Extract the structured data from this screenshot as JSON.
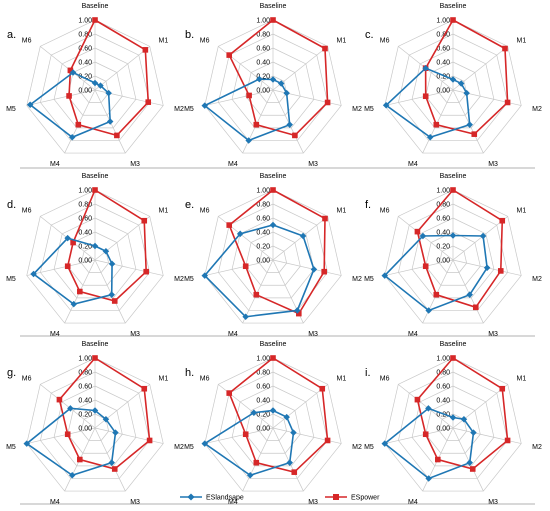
{
  "chart_data": {
    "type": "radar",
    "axes": [
      "Baseline",
      "M1",
      "M2",
      "M3",
      "M4",
      "M5",
      "M6"
    ],
    "ticks": [
      "0.00",
      "0.20",
      "0.40",
      "0.60",
      "0.80",
      "1.00"
    ],
    "rlim": [
      0,
      1
    ],
    "legend": {
      "placement": "bottom",
      "entries": [
        {
          "name": "ESlandsape",
          "color": "#1f77b4",
          "marker": "diamond"
        },
        {
          "name": "ESpower",
          "color": "#d62728",
          "marker": "square"
        }
      ]
    },
    "panels": [
      {
        "label": "a.",
        "series": [
          {
            "name": "ESlandsape",
            "values": [
              0.1,
              0.1,
              0.2,
              0.5,
              0.75,
              0.95,
              0.4
            ]
          },
          {
            "name": "ESpower",
            "values": [
              1.0,
              0.92,
              0.78,
              0.72,
              0.55,
              0.38,
              0.45
            ]
          }
        ]
      },
      {
        "label": "b.",
        "series": [
          {
            "name": "ESlandsape",
            "values": [
              0.15,
              0.15,
              0.2,
              0.55,
              0.8,
              1.0,
              0.25
            ]
          },
          {
            "name": "ESpower",
            "values": [
              1.0,
              0.95,
              0.8,
              0.72,
              0.55,
              0.35,
              0.8
            ]
          }
        ]
      },
      {
        "label": "c.",
        "series": [
          {
            "name": "ESlandsape",
            "values": [
              0.15,
              0.15,
              0.2,
              0.55,
              0.75,
              0.98,
              0.5
            ]
          },
          {
            "name": "ESpower",
            "values": [
              1.0,
              0.95,
              0.8,
              0.7,
              0.55,
              0.4,
              0.5
            ]
          }
        ]
      },
      {
        "label": "d.",
        "series": [
          {
            "name": "ESlandsape",
            "values": [
              0.2,
              0.2,
              0.25,
              0.55,
              0.7,
              0.9,
              0.5
            ]
          },
          {
            "name": "ESpower",
            "values": [
              1.0,
              0.9,
              0.75,
              0.65,
              0.5,
              0.4,
              0.4
            ]
          }
        ]
      },
      {
        "label": "e.",
        "series": [
          {
            "name": "ESlandsape",
            "values": [
              0.5,
              0.55,
              0.6,
              0.8,
              0.9,
              1.0,
              0.6
            ]
          },
          {
            "name": "ESpower",
            "values": [
              1.0,
              0.95,
              0.75,
              0.85,
              0.55,
              0.4,
              0.8
            ]
          }
        ]
      },
      {
        "label": "f.",
        "series": [
          {
            "name": "ESlandsape",
            "values": [
              0.35,
              0.55,
              0.5,
              0.55,
              0.8,
              1.0,
              0.55
            ]
          },
          {
            "name": "ESpower",
            "values": [
              1.0,
              0.9,
              0.7,
              0.75,
              0.55,
              0.4,
              0.65
            ]
          }
        ]
      },
      {
        "label": "g.",
        "series": [
          {
            "name": "ESlandsape",
            "values": [
              0.25,
              0.2,
              0.3,
              0.55,
              0.75,
              1.0,
              0.45
            ]
          },
          {
            "name": "ESpower",
            "values": [
              1.0,
              0.9,
              0.8,
              0.65,
              0.5,
              0.4,
              0.65
            ]
          }
        ]
      },
      {
        "label": "h.",
        "series": [
          {
            "name": "ESlandsape",
            "values": [
              0.25,
              0.25,
              0.3,
              0.55,
              0.75,
              1.0,
              0.35
            ]
          },
          {
            "name": "ESpower",
            "values": [
              1.0,
              0.9,
              0.8,
              0.7,
              0.55,
              0.4,
              0.8
            ]
          }
        ]
      },
      {
        "label": "i.",
        "series": [
          {
            "name": "ESlandsape",
            "values": [
              0.15,
              0.2,
              0.3,
              0.55,
              0.8,
              1.0,
              0.45
            ]
          },
          {
            "name": "ESpower",
            "values": [
              1.0,
              0.9,
              0.8,
              0.65,
              0.5,
              0.4,
              0.65
            ]
          }
        ]
      }
    ]
  }
}
